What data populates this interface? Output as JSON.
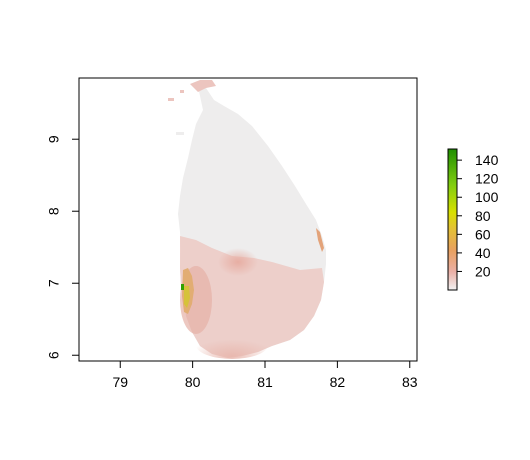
{
  "map": {
    "x_ticks": [
      "79",
      "80",
      "81",
      "82",
      "83"
    ],
    "y_ticks": [
      "6",
      "7",
      "8",
      "9"
    ],
    "xlim": [
      78.43,
      83.1
    ],
    "ylim": [
      5.92,
      9.85
    ],
    "legend": {
      "ticks": [
        "20",
        "40",
        "60",
        "80",
        "100",
        "120",
        "140"
      ],
      "tick_values": [
        20,
        40,
        60,
        80,
        100,
        120,
        140
      ],
      "range": [
        0,
        152
      ],
      "colors": [
        "#f2f2f2",
        "#ebb0a6",
        "#e8a060",
        "#e3c233",
        "#d8e000",
        "#7fcc10",
        "#1f8f00"
      ]
    }
  },
  "colors": {
    "land_base": "#eeeded",
    "land_pink": "#ecc5bf",
    "land_orange": "#e2ad73",
    "land_yellow": "#d6c23a",
    "land_green": "#32a000"
  }
}
